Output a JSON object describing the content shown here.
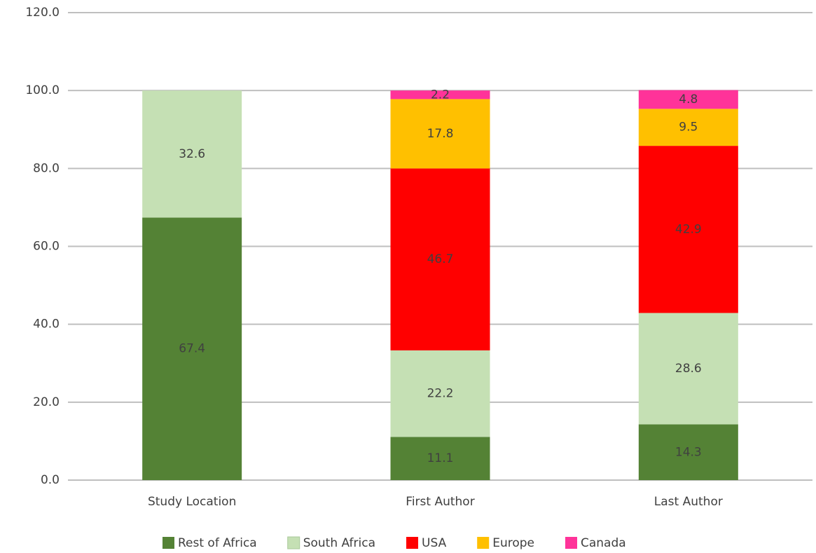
{
  "chart_data": {
    "type": "stacked_bar",
    "categories": [
      "Study Location",
      "First Author",
      "Last Author"
    ],
    "series": [
      {
        "name": "Rest of Africa",
        "color": "#548235",
        "values": [
          67.4,
          11.1,
          14.3
        ]
      },
      {
        "name": "South Africa",
        "color": "#c5e0b4",
        "values": [
          32.6,
          22.2,
          28.6
        ]
      },
      {
        "name": "USA",
        "color": "#ff0000",
        "values": [
          null,
          46.7,
          42.9
        ]
      },
      {
        "name": "Europe",
        "color": "#ffc000",
        "values": [
          null,
          17.8,
          9.5
        ]
      },
      {
        "name": "Canada",
        "color": "#ff3399",
        "values": [
          null,
          2.2,
          4.8
        ]
      }
    ],
    "ylim": [
      0,
      120
    ],
    "yticks": [
      {
        "value": 0,
        "label": "0.0"
      },
      {
        "value": 20,
        "label": "20.0"
      },
      {
        "value": 40,
        "label": "40.0"
      },
      {
        "value": 60,
        "label": "60.0"
      },
      {
        "value": 80,
        "label": "80.0"
      },
      {
        "value": 100,
        "label": "100.0"
      },
      {
        "value": 120,
        "label": "120.0"
      }
    ],
    "grid": true,
    "legend": "bottom"
  }
}
